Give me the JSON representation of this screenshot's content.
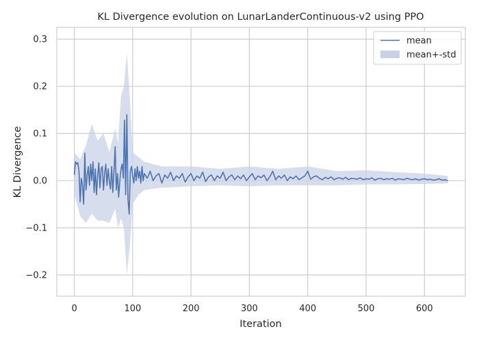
{
  "chart_data": {
    "type": "line",
    "title": "KL Divergence evolution on LunarLanderContinuous-v2 using PPO",
    "xlabel": "Iteration",
    "ylabel": "KL Divergence",
    "xlim": [
      -30,
      670
    ],
    "ylim": [
      -0.245,
      0.325
    ],
    "xticks": [
      0,
      100,
      200,
      300,
      400,
      500,
      600
    ],
    "yticks": [
      -0.2,
      -0.1,
      0.0,
      0.1,
      0.2,
      0.3
    ],
    "xtick_labels": [
      "0",
      "100",
      "200",
      "300",
      "400",
      "500",
      "600"
    ],
    "ytick_labels": [
      "−0.2",
      "−0.1",
      "0.0",
      "0.1",
      "0.2",
      "0.3"
    ],
    "grid": true,
    "legend_position": "top-right",
    "colors": {
      "line": "#4c72b0",
      "band": "#c8d2e5",
      "grid": "#cccccc",
      "frame": "#cccccc"
    },
    "series": [
      {
        "name": "mean",
        "kind": "line",
        "x": [
          0,
          2,
          4,
          6,
          8,
          10,
          12,
          14,
          16,
          18,
          20,
          22,
          24,
          26,
          28,
          30,
          32,
          34,
          36,
          38,
          40,
          42,
          44,
          46,
          48,
          50,
          52,
          54,
          56,
          58,
          60,
          62,
          64,
          66,
          68,
          70,
          72,
          74,
          76,
          78,
          80,
          82,
          84,
          86,
          88,
          90,
          92,
          94,
          96,
          98,
          100,
          102,
          104,
          106,
          108,
          110,
          112,
          114,
          116,
          118,
          120,
          125,
          130,
          135,
          140,
          145,
          150,
          155,
          160,
          165,
          170,
          175,
          180,
          185,
          190,
          195,
          200,
          205,
          210,
          215,
          220,
          225,
          230,
          235,
          240,
          245,
          250,
          255,
          260,
          265,
          270,
          275,
          280,
          285,
          290,
          295,
          300,
          305,
          310,
          315,
          320,
          325,
          330,
          335,
          340,
          345,
          350,
          355,
          360,
          365,
          370,
          375,
          380,
          385,
          390,
          395,
          400,
          405,
          410,
          415,
          420,
          425,
          430,
          435,
          440,
          445,
          450,
          455,
          460,
          465,
          470,
          475,
          480,
          485,
          490,
          495,
          500,
          505,
          510,
          515,
          520,
          525,
          530,
          535,
          540,
          545,
          550,
          555,
          560,
          565,
          570,
          575,
          580,
          585,
          590,
          595,
          600,
          605,
          610,
          615,
          620,
          625,
          630,
          635,
          640
        ],
        "y": [
          0.012,
          0.04,
          0.035,
          0.038,
          0.02,
          -0.045,
          0.005,
          -0.01,
          -0.05,
          0.058,
          -0.02,
          0.01,
          0.03,
          -0.01,
          0.035,
          0.0,
          0.04,
          -0.025,
          0.025,
          -0.03,
          0.01,
          0.038,
          -0.015,
          0.025,
          0.03,
          -0.02,
          0.015,
          0.035,
          -0.01,
          0.025,
          0.0,
          -0.018,
          0.03,
          -0.025,
          0.02,
          0.072,
          -0.02,
          0.015,
          -0.035,
          0.0,
          0.025,
          0.035,
          0.005,
          0.128,
          -0.03,
          0.14,
          -0.04,
          -0.071,
          0.02,
          0.03,
          0.01,
          -0.005,
          0.025,
          0.0,
          0.03,
          0.005,
          0.02,
          -0.005,
          0.03,
          0.0,
          0.015,
          0.005,
          0.02,
          0.0,
          0.01,
          0.015,
          -0.005,
          0.012,
          0.005,
          0.018,
          0.0,
          0.01,
          0.005,
          0.015,
          -0.003,
          0.008,
          0.015,
          0.0,
          0.01,
          0.005,
          0.018,
          -0.002,
          0.008,
          0.012,
          0.0,
          0.01,
          0.005,
          0.018,
          0.0,
          0.008,
          0.012,
          0.002,
          0.01,
          0.004,
          0.012,
          0.0,
          0.008,
          0.015,
          0.002,
          0.01,
          0.006,
          0.012,
          0.0,
          0.008,
          0.02,
          0.002,
          0.01,
          0.005,
          0.012,
          0.0,
          0.008,
          0.004,
          0.01,
          0.002,
          0.006,
          0.01,
          0.02,
          0.003,
          0.008,
          0.01,
          0.005,
          0.002,
          0.007,
          0.004,
          0.008,
          0.002,
          0.005,
          0.006,
          0.003,
          0.007,
          0.002,
          0.005,
          0.004,
          0.003,
          0.006,
          0.002,
          0.004,
          0.003,
          0.006,
          0.001,
          0.004,
          0.005,
          0.002,
          0.004,
          0.003,
          0.005,
          0.001,
          0.004,
          0.003,
          0.002,
          0.005,
          0.003,
          0.002,
          0.004,
          0.001,
          0.003,
          0.004,
          0.002,
          0.003,
          0.001,
          0.002,
          0.004,
          0.001,
          0.002,
          0.0
        ]
      },
      {
        "name": "mean+-std",
        "kind": "band",
        "x": [
          0,
          10,
          20,
          30,
          40,
          50,
          60,
          70,
          75,
          80,
          85,
          90,
          95,
          100,
          110,
          120,
          150,
          200,
          250,
          300,
          350,
          400,
          450,
          500,
          550,
          600,
          640
        ],
        "upper": [
          0.06,
          0.045,
          0.075,
          0.12,
          0.085,
          0.1,
          0.06,
          0.11,
          0.08,
          0.18,
          0.2,
          0.27,
          0.18,
          0.06,
          0.05,
          0.04,
          0.03,
          0.03,
          0.025,
          0.03,
          0.025,
          0.03,
          0.02,
          0.022,
          0.018,
          0.015,
          0.01
        ],
        "lower": [
          -0.03,
          -0.075,
          -0.09,
          -0.07,
          -0.085,
          -0.085,
          -0.09,
          -0.06,
          -0.1,
          -0.08,
          -0.1,
          -0.2,
          -0.14,
          -0.05,
          -0.03,
          -0.02,
          -0.015,
          -0.012,
          -0.01,
          -0.012,
          -0.01,
          -0.01,
          -0.01,
          -0.008,
          -0.008,
          -0.007,
          -0.006
        ]
      }
    ]
  }
}
